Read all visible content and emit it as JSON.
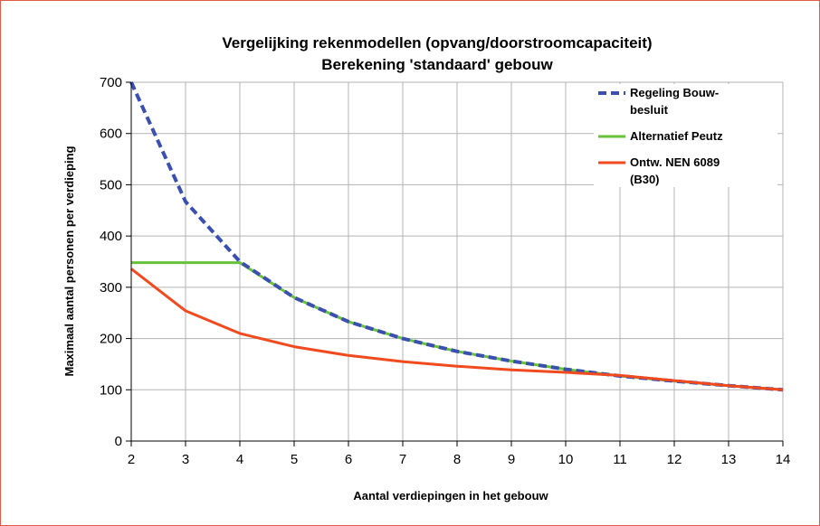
{
  "chart_data": {
    "type": "line",
    "title": "Vergelijking rekenmodellen (opvang/doorstroomcapaciteit)",
    "subtitle": "Berekening 'standaard' gebouw",
    "xlabel": "Aantal verdiepingen in het gebouw",
    "ylabel": "Maximaal aantal personen per verdieping",
    "x": [
      2,
      3,
      4,
      5,
      6,
      7,
      8,
      9,
      10,
      11,
      12,
      13,
      14
    ],
    "xlim": [
      2,
      14
    ],
    "ylim": [
      0,
      700
    ],
    "yticks": [
      0,
      100,
      200,
      300,
      400,
      500,
      600,
      700
    ],
    "xticks": [
      2,
      3,
      4,
      5,
      6,
      7,
      8,
      9,
      10,
      11,
      12,
      13,
      14
    ],
    "grid": true,
    "legend_position": "top-right",
    "series": [
      {
        "name": "Regeling Bouwbesluit",
        "legend_lines": [
          "Regeling Bouw-",
          "besluit"
        ],
        "color": "#3a4fb0",
        "style": "dashed",
        "values": [
          700,
          467,
          350,
          280,
          233,
          200,
          175,
          156,
          140,
          127,
          117,
          108,
          100
        ]
      },
      {
        "name": "Alternatief Peutz",
        "legend_lines": [
          "Alternatief Peutz"
        ],
        "color": "#66c23a",
        "style": "solid",
        "values": [
          348,
          348,
          348,
          280,
          233,
          200,
          175,
          156,
          140,
          127,
          117,
          108,
          100
        ]
      },
      {
        "name": "Ontw. NEN 6089 (B30)",
        "legend_lines": [
          "Ontw. NEN 6089",
          "(B30)"
        ],
        "color": "#f04a1e",
        "style": "solid",
        "values": [
          336,
          254,
          210,
          184,
          167,
          155,
          146,
          139,
          134,
          128,
          118,
          108,
          100
        ]
      }
    ]
  }
}
